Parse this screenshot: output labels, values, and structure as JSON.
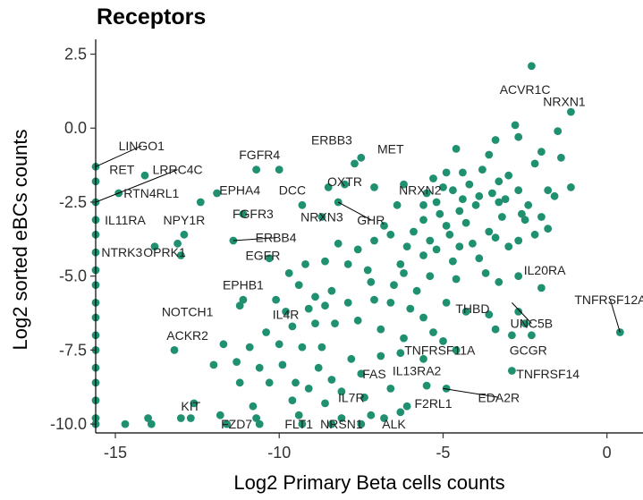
{
  "chart_data": {
    "type": "scatter",
    "title": "Receptors",
    "xlabel": "Log2 Primary Beta cells counts",
    "ylabel": "Log2 sorted eBCs counts",
    "xlim": [
      -15.6,
      1.1
    ],
    "ylim": [
      -10.3,
      3.0
    ],
    "xticks": [
      -15,
      -10,
      -5,
      0
    ],
    "xtick_labels": [
      "-15",
      "-10",
      "-5",
      "0"
    ],
    "yticks": [
      2.5,
      0,
      -2.5,
      -5,
      -7.5,
      -10
    ],
    "ytick_labels": [
      "2.5",
      "0.0",
      "-2.5",
      "-5.0",
      "-7.5",
      "-10.0"
    ],
    "point_color": "#1f9070",
    "grid": false,
    "points": [
      [
        -2.3,
        2.1
      ],
      [
        -1.1,
        0.55
      ],
      [
        -2.8,
        0.1
      ],
      [
        -3.4,
        -0.4
      ],
      [
        -1.5,
        -0.1
      ],
      [
        -2.0,
        -0.8
      ],
      [
        -3.6,
        -0.9
      ],
      [
        -4.6,
        -0.7
      ],
      [
        -2.7,
        -0.3
      ],
      [
        -1.4,
        -1.0
      ],
      [
        -2.2,
        -1.2
      ],
      [
        -3.0,
        -1.6
      ],
      [
        -3.3,
        -1.8
      ],
      [
        -3.8,
        -1.4
      ],
      [
        -4.4,
        -1.5
      ],
      [
        -4.9,
        -1.5
      ],
      [
        -5.3,
        -1.7
      ],
      [
        -4.2,
        -1.9
      ],
      [
        -4.7,
        -2.1
      ],
      [
        -5.0,
        -2.0
      ],
      [
        -5.5,
        -2.2
      ],
      [
        -5.2,
        -2.5
      ],
      [
        -5.6,
        -2.6
      ],
      [
        -4.4,
        -2.4
      ],
      [
        -3.9,
        -2.3
      ],
      [
        -3.5,
        -2.2
      ],
      [
        -2.7,
        -2.1
      ],
      [
        -1.8,
        -2.1
      ],
      [
        -1.1,
        -2.0
      ],
      [
        -1.6,
        -2.3
      ],
      [
        -2.4,
        -2.6
      ],
      [
        -3.1,
        -2.4
      ],
      [
        -4.0,
        -2.6
      ],
      [
        -4.5,
        -2.8
      ],
      [
        -5.1,
        -2.9
      ],
      [
        -6.4,
        -2.6
      ],
      [
        -6.8,
        -3.3
      ],
      [
        -5.6,
        -3.1
      ],
      [
        -4.3,
        -3.2
      ],
      [
        -3.2,
        -3.0
      ],
      [
        -2.5,
        -3.1
      ],
      [
        -3.6,
        -3.5
      ],
      [
        -4.8,
        -3.6
      ],
      [
        -5.4,
        -3.8
      ],
      [
        -4.1,
        -3.9
      ],
      [
        -3.4,
        -3.7
      ],
      [
        -2.7,
        -3.8
      ],
      [
        -2.2,
        -3.6
      ],
      [
        -1.8,
        -3.4
      ],
      [
        -3.0,
        -4.0
      ],
      [
        -4.5,
        -4.0
      ],
      [
        -5.2,
        -4.1
      ],
      [
        -6.1,
        -4.0
      ],
      [
        -5.9,
        -3.5
      ],
      [
        -6.6,
        -3.6
      ],
      [
        -7.1,
        -3.8
      ],
      [
        -4.7,
        -4.5
      ],
      [
        -3.9,
        -4.4
      ],
      [
        -5.6,
        -4.3
      ],
      [
        -6.3,
        -4.6
      ],
      [
        -2.0,
        -3.0
      ],
      [
        -2.6,
        -2.9
      ],
      [
        -3.3,
        -2.5
      ],
      [
        -4.9,
        -3.3
      ],
      [
        -3.7,
        -4.9
      ],
      [
        -3.3,
        -5.2
      ],
      [
        -2.7,
        -5.0
      ],
      [
        -2.0,
        -5.4
      ],
      [
        -4.6,
        -5.1
      ],
      [
        -5.4,
        -5.0
      ],
      [
        -6.2,
        -4.9
      ],
      [
        -7.3,
        -4.8
      ],
      [
        -7.9,
        -4.6
      ],
      [
        -8.6,
        -4.5
      ],
      [
        -9.2,
        -4.6
      ],
      [
        -9.7,
        -4.9
      ],
      [
        -10.3,
        -4.4
      ],
      [
        -8.2,
        -3.9
      ],
      [
        -7.6,
        -4.1
      ],
      [
        -7.2,
        -5.2
      ],
      [
        -6.5,
        -5.3
      ],
      [
        -5.8,
        -5.5
      ],
      [
        -4.9,
        -5.9
      ],
      [
        -4.3,
        -6.2
      ],
      [
        -3.6,
        -6.3
      ],
      [
        -2.7,
        -6.2
      ],
      [
        -3.4,
        -6.8
      ],
      [
        -2.5,
        -6.6
      ],
      [
        -2.3,
        -7.0
      ],
      [
        -2.9,
        -7.0
      ],
      [
        -2.9,
        -8.2
      ],
      [
        0.4,
        -6.9
      ],
      [
        -8.4,
        -5.5
      ],
      [
        -8.9,
        -5.7
      ],
      [
        -9.4,
        -5.3
      ],
      [
        -10.1,
        -5.8
      ],
      [
        -9.8,
        -6.2
      ],
      [
        -9.1,
        -6.1
      ],
      [
        -8.6,
        -6.0
      ],
      [
        -7.9,
        -5.9
      ],
      [
        -7.1,
        -5.8
      ],
      [
        -6.6,
        -5.9
      ],
      [
        -6.0,
        -6.1
      ],
      [
        -5.6,
        -6.4
      ],
      [
        -8.3,
        -6.6
      ],
      [
        -8.9,
        -6.6
      ],
      [
        -9.6,
        -6.7
      ],
      [
        -10.4,
        -6.9
      ],
      [
        -7.6,
        -6.5
      ],
      [
        -6.9,
        -6.8
      ],
      [
        -6.2,
        -7.1
      ],
      [
        -5.3,
        -6.9
      ],
      [
        -5.0,
        -7.2
      ],
      [
        -9.3,
        -7.4
      ],
      [
        -8.7,
        -7.4
      ],
      [
        -10.0,
        -7.3
      ],
      [
        -10.9,
        -7.4
      ],
      [
        -11.7,
        -7.3
      ],
      [
        -13.2,
        -7.5
      ],
      [
        -11.3,
        -7.9
      ],
      [
        -10.6,
        -8.1
      ],
      [
        -9.9,
        -8.0
      ],
      [
        -8.8,
        -8.1
      ],
      [
        -7.8,
        -7.8
      ],
      [
        -6.9,
        -7.7
      ],
      [
        -6.3,
        -7.6
      ],
      [
        -5.6,
        -7.8
      ],
      [
        -4.6,
        -7.5
      ],
      [
        -12.0,
        -8.0
      ],
      [
        -11.2,
        -8.6
      ],
      [
        -10.3,
        -8.6
      ],
      [
        -9.5,
        -8.6
      ],
      [
        -8.4,
        -8.5
      ],
      [
        -7.5,
        -8.3
      ],
      [
        -6.6,
        -8.8
      ],
      [
        -5.5,
        -8.7
      ],
      [
        -4.9,
        -8.8
      ],
      [
        -9.1,
        -8.8
      ],
      [
        -8.1,
        -8.9
      ],
      [
        -10.8,
        -9.4
      ],
      [
        -9.6,
        -9.2
      ],
      [
        -8.6,
        -9.3
      ],
      [
        -7.4,
        -9.1
      ],
      [
        -6.1,
        -9.4
      ],
      [
        -12.6,
        -9.3
      ],
      [
        -11.8,
        -9.7
      ],
      [
        -10.7,
        -9.8
      ],
      [
        -9.4,
        -9.7
      ],
      [
        -8.1,
        -9.8
      ],
      [
        -7.2,
        -9.7
      ],
      [
        -6.3,
        -9.6
      ],
      [
        -14.0,
        -9.8
      ],
      [
        -13.0,
        -9.8
      ],
      [
        -12.7,
        -9.8
      ],
      [
        -11.6,
        -10.0
      ],
      [
        -10.6,
        -10.0
      ],
      [
        -9.3,
        -10.0
      ],
      [
        -8.4,
        -10.0
      ],
      [
        -7.5,
        -10.0
      ],
      [
        -14.7,
        -10.0
      ],
      [
        -13.9,
        -10.0
      ],
      [
        -6.8,
        -9.8
      ],
      [
        -12.4,
        -2.5
      ],
      [
        -11.1,
        -2.9
      ],
      [
        -12.9,
        -3.6
      ],
      [
        -13.1,
        -3.9
      ],
      [
        -13.8,
        -4.0
      ],
      [
        -13.0,
        -4.3
      ],
      [
        -11.4,
        -3.8
      ],
      [
        -10.7,
        -1.4
      ],
      [
        -10.0,
        -1.4
      ],
      [
        -9.3,
        -2.6
      ],
      [
        -8.7,
        -3.0
      ],
      [
        -8.5,
        -2.0
      ],
      [
        -8.0,
        -1.9
      ],
      [
        -7.7,
        -1.2
      ],
      [
        -7.5,
        -1.0
      ],
      [
        -7.1,
        -2.0
      ],
      [
        -8.2,
        -2.5
      ],
      [
        -11.2,
        -6.0
      ],
      [
        -11.1,
        -5.8
      ],
      [
        -11.9,
        -2.2
      ],
      [
        -14.9,
        -2.2
      ],
      [
        -14.1,
        -1.6
      ],
      [
        -6.2,
        -1.9
      ],
      [
        -15.6,
        -1.3
      ],
      [
        -15.6,
        -1.8
      ],
      [
        -15.6,
        -2.5
      ],
      [
        -15.6,
        -3.1
      ],
      [
        -15.6,
        -3.6
      ],
      [
        -15.6,
        -4.2
      ],
      [
        -15.6,
        -4.8
      ],
      [
        -15.6,
        -5.3
      ],
      [
        -15.6,
        -5.9
      ],
      [
        -15.6,
        -6.4
      ],
      [
        -15.6,
        -7.0
      ],
      [
        -15.6,
        -7.5
      ],
      [
        -15.6,
        -8.1
      ],
      [
        -15.6,
        -8.6
      ],
      [
        -15.6,
        -9.2
      ],
      [
        -15.6,
        -9.8
      ],
      [
        -15.6,
        -10.0
      ]
    ],
    "labels": [
      {
        "text": "ACVR1C",
        "x": -2.3,
        "y": 2.1,
        "lx": -2.5,
        "ly": 1.3
      },
      {
        "text": "NRXN1",
        "x": -1.1,
        "y": 0.55,
        "lx": -1.3,
        "ly": 0.9
      },
      {
        "text": "LINGO1",
        "x": -15.6,
        "y": -1.3,
        "lx": -14.2,
        "ly": -0.6,
        "lead": true
      },
      {
        "text": "RET",
        "x": -15.6,
        "y": -1.8,
        "lx": -14.8,
        "ly": -1.4
      },
      {
        "text": "LRRC4C",
        "x": -15.6,
        "y": -2.5,
        "lx": -13.1,
        "ly": -1.4,
        "lead": true
      },
      {
        "text": "RTN4RL1",
        "x": -14.9,
        "y": -2.2,
        "lx": -13.9,
        "ly": -2.2
      },
      {
        "text": "IL11RA",
        "x": -15.6,
        "y": -3.0,
        "lx": -14.7,
        "ly": -3.1
      },
      {
        "text": "NPY1R",
        "x": -12.9,
        "y": -3.6,
        "lx": -12.9,
        "ly": -3.1
      },
      {
        "text": "NTRK3",
        "x": -15.6,
        "y": -4.2,
        "lx": -14.8,
        "ly": -4.2
      },
      {
        "text": "OPRK1",
        "x": -13.1,
        "y": -3.9,
        "lx": -13.5,
        "ly": -4.2
      },
      {
        "text": "FGFR4",
        "x": -10.7,
        "y": -1.4,
        "lx": -10.6,
        "ly": -0.9
      },
      {
        "text": "ERBB3",
        "x": -7.7,
        "y": -1.2,
        "lx": -8.4,
        "ly": -0.4
      },
      {
        "text": "MET",
        "x": -7.5,
        "y": -1.0,
        "lx": -6.6,
        "ly": -0.7
      },
      {
        "text": "EPHA4",
        "x": -11.9,
        "y": -2.2,
        "lx": -11.2,
        "ly": -2.1
      },
      {
        "text": "DCC",
        "x": -9.3,
        "y": -2.6,
        "lx": -9.6,
        "ly": -2.1
      },
      {
        "text": "OXTR",
        "x": -8.0,
        "y": -1.9,
        "lx": -8.0,
        "ly": -1.8
      },
      {
        "text": "NRXN2",
        "x": -6.2,
        "y": -1.9,
        "lx": -5.7,
        "ly": -2.1
      },
      {
        "text": "FGFR3",
        "x": -11.1,
        "y": -2.9,
        "lx": -10.8,
        "ly": -2.9
      },
      {
        "text": "NRXN3",
        "x": -8.7,
        "y": -3.0,
        "lx": -8.7,
        "ly": -3.0
      },
      {
        "text": "GHR",
        "x": -8.2,
        "y": -2.5,
        "lx": -7.2,
        "ly": -3.1,
        "lead": true
      },
      {
        "text": "ERBB4",
        "x": -11.4,
        "y": -3.8,
        "lx": -10.1,
        "ly": -3.7,
        "lead": true
      },
      {
        "text": "EGFR",
        "x": -10.3,
        "y": -4.4,
        "lx": -10.5,
        "ly": -4.3
      },
      {
        "text": "EPHB1",
        "x": -11.2,
        "y": -5.8,
        "lx": -11.1,
        "ly": -5.3
      },
      {
        "text": "NOTCH1",
        "x": -11.2,
        "y": -6.0,
        "lx": -12.8,
        "ly": -6.2
      },
      {
        "text": "IL4R",
        "x": -10.0,
        "y": -6.2,
        "lx": -9.8,
        "ly": -6.3
      },
      {
        "text": "ACKR2",
        "x": -13.2,
        "y": -7.5,
        "lx": -12.8,
        "ly": -7.0
      },
      {
        "text": "IL20RA",
        "x": -2.9,
        "y": -5.5,
        "lx": -1.9,
        "ly": -4.8
      },
      {
        "text": "TNFRSF12A",
        "x": 0.4,
        "y": -6.9,
        "lx": 0.1,
        "ly": -5.8,
        "lead": true
      },
      {
        "text": "THBD",
        "x": -3.4,
        "y": -6.8,
        "lx": -4.1,
        "ly": -6.1
      },
      {
        "text": "UNC5B",
        "x": -2.9,
        "y": -5.9,
        "lx": -2.3,
        "ly": -6.6,
        "lead": true
      },
      {
        "text": "TNFRSF11A",
        "x": -4.6,
        "y": -7.5,
        "lx": -5.1,
        "ly": -7.5
      },
      {
        "text": "GCGR",
        "x": -2.3,
        "y": -7.0,
        "lx": -2.4,
        "ly": -7.5
      },
      {
        "text": "TNFRSF14",
        "x": -2.9,
        "y": -8.2,
        "lx": -1.8,
        "ly": -8.3
      },
      {
        "text": "FAS",
        "x": -7.5,
        "y": -8.3,
        "lx": -7.1,
        "ly": -8.3
      },
      {
        "text": "IL13RA2",
        "x": -5.6,
        "y": -8.2,
        "lx": -5.8,
        "ly": -8.2
      },
      {
        "text": "EDA2R",
        "x": -5.0,
        "y": -8.8,
        "lx": -3.3,
        "ly": -9.1,
        "lead": true
      },
      {
        "text": "F2RL1",
        "x": -5.5,
        "y": -8.7,
        "lx": -5.3,
        "ly": -9.3
      },
      {
        "text": "IL7R",
        "x": -7.8,
        "y": -9.0,
        "lx": -7.8,
        "ly": -9.1
      },
      {
        "text": "KIT",
        "x": -12.7,
        "y": -9.8,
        "lx": -12.7,
        "ly": -9.4
      },
      {
        "text": "FZD7",
        "x": -11.6,
        "y": -10.0,
        "lx": -11.3,
        "ly": -10.0
      },
      {
        "text": "FLT1",
        "x": -9.6,
        "y": -9.7,
        "lx": -9.4,
        "ly": -10.0
      },
      {
        "text": "NRSN1",
        "x": -8.4,
        "y": -10.0,
        "lx": -8.1,
        "ly": -10.0
      },
      {
        "text": "ALK",
        "x": -7.5,
        "y": -10.0,
        "lx": -6.5,
        "ly": -10.0
      }
    ]
  }
}
